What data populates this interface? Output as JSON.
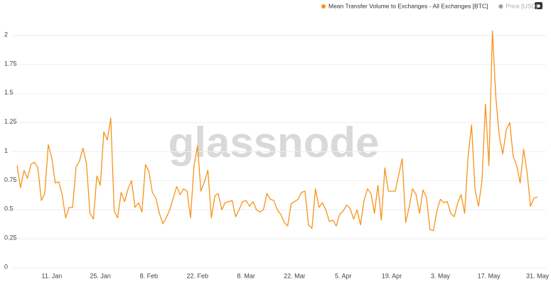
{
  "chart_data": {
    "type": "line",
    "watermark": "glassnode",
    "categories": [
      null,
      null,
      null,
      null,
      null,
      null,
      null,
      null,
      null,
      null,
      "11. Jan",
      null,
      null,
      null,
      null,
      null,
      null,
      null,
      null,
      null,
      null,
      null,
      null,
      null,
      "25. Jan",
      null,
      null,
      null,
      null,
      null,
      null,
      null,
      null,
      null,
      null,
      null,
      null,
      null,
      "8. Feb",
      null,
      null,
      null,
      null,
      null,
      null,
      null,
      null,
      null,
      null,
      null,
      null,
      null,
      "22. Feb",
      null,
      null,
      null,
      null,
      null,
      null,
      null,
      null,
      null,
      null,
      null,
      null,
      null,
      "8. Mar",
      null,
      null,
      null,
      null,
      null,
      null,
      null,
      null,
      null,
      null,
      null,
      null,
      null,
      "22. Mar",
      null,
      null,
      null,
      null,
      null,
      null,
      null,
      null,
      null,
      null,
      null,
      null,
      null,
      "5. Apr",
      null,
      null,
      null,
      null,
      null,
      null,
      null,
      null,
      null,
      null,
      null,
      null,
      null,
      "19. Apr",
      null,
      null,
      null,
      null,
      null,
      null,
      null,
      null,
      null,
      null,
      null,
      null,
      null,
      "3. May",
      null,
      null,
      null,
      null,
      null,
      null,
      null,
      null,
      null,
      null,
      null,
      null,
      null,
      "17. May",
      null,
      null,
      null,
      null,
      null,
      null,
      null,
      null,
      null,
      null,
      null,
      null,
      null,
      "31. May"
    ],
    "series": [
      {
        "name": "Mean Transfer Volume to Exchanges - All Exchanges [BTC]",
        "color": "#f7931a",
        "values": [
          0.88,
          0.69,
          0.84,
          0.77,
          0.89,
          0.91,
          0.86,
          0.58,
          0.64,
          1.06,
          0.95,
          0.73,
          0.74,
          0.63,
          0.43,
          0.52,
          0.52,
          0.87,
          0.92,
          1.03,
          0.9,
          0.47,
          0.42,
          0.79,
          0.71,
          1.17,
          1.1,
          1.29,
          0.49,
          0.43,
          0.65,
          0.57,
          0.68,
          0.75,
          0.52,
          0.56,
          0.48,
          0.89,
          0.83,
          0.65,
          0.6,
          0.47,
          0.38,
          0.43,
          0.5,
          0.6,
          0.7,
          0.63,
          0.68,
          0.66,
          0.43,
          0.88,
          1.05,
          0.66,
          0.74,
          0.84,
          0.43,
          0.62,
          0.64,
          0.5,
          0.56,
          0.57,
          0.58,
          0.44,
          0.5,
          0.57,
          0.58,
          0.53,
          0.57,
          0.5,
          0.48,
          0.5,
          0.64,
          0.59,
          0.58,
          0.5,
          0.46,
          0.39,
          0.36,
          0.55,
          0.57,
          0.59,
          0.65,
          0.66,
          0.37,
          0.34,
          0.68,
          0.52,
          0.56,
          0.5,
          0.4,
          0.41,
          0.36,
          0.46,
          0.49,
          0.54,
          0.51,
          0.42,
          0.5,
          0.37,
          0.58,
          0.68,
          0.64,
          0.47,
          0.71,
          0.41,
          0.86,
          0.66,
          0.66,
          0.66,
          0.8,
          0.94,
          0.39,
          0.52,
          0.68,
          0.63,
          0.47,
          0.67,
          0.61,
          0.33,
          0.32,
          0.49,
          0.59,
          0.56,
          0.57,
          0.47,
          0.44,
          0.56,
          0.63,
          0.47,
          0.96,
          1.23,
          0.67,
          0.53,
          0.75,
          1.41,
          0.88,
          2.04,
          1.47,
          1.13,
          0.98,
          1.19,
          1.25,
          0.96,
          0.88,
          0.73,
          1.02,
          0.82,
          0.53,
          0.6,
          0.61
        ]
      }
    ],
    "hidden_series": [
      {
        "name": "Price [USD]",
        "color": "#9e9e9e"
      }
    ],
    "ylim": [
      0,
      2.2
    ],
    "yticks": [
      0,
      0.25,
      0.5,
      0.75,
      1,
      1.25,
      1.5,
      1.75,
      2
    ],
    "grid": true
  }
}
